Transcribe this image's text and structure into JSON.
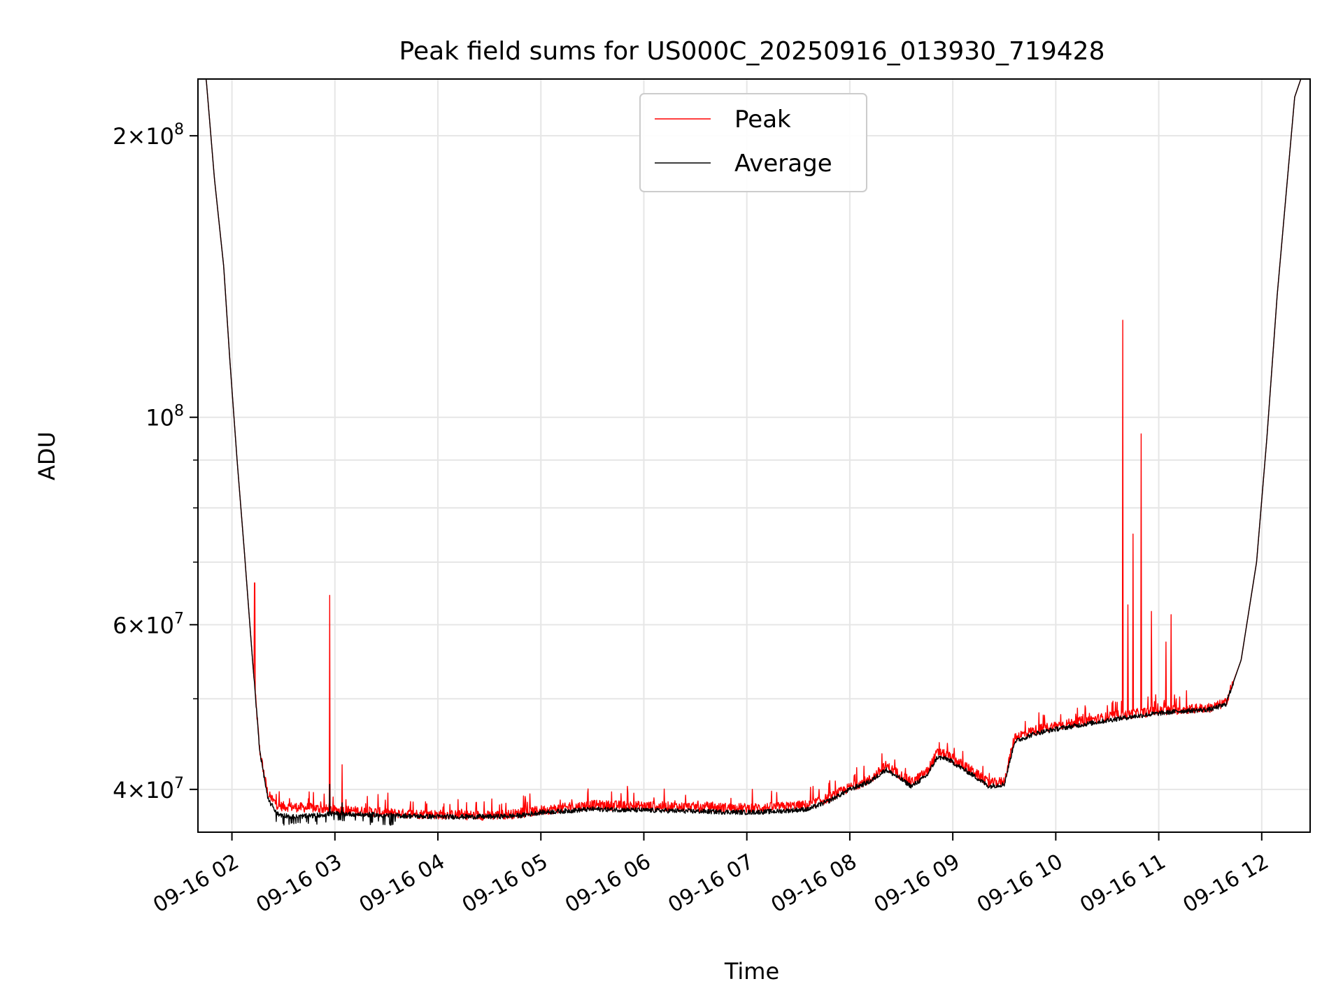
{
  "chart_data": {
    "type": "line",
    "title": "Peak field sums for US000C_20250916_013930_719428",
    "xlabel": "Time",
    "ylabel": "ADU",
    "yscale": "log",
    "ylim": [
      36000000,
      230000000
    ],
    "xlim_hours": [
      1.67,
      12.47
    ],
    "grid": true,
    "legend_position": "upper center",
    "x_ticks": [
      {
        "hour": 2,
        "label": "09-16 02"
      },
      {
        "hour": 3,
        "label": "09-16 03"
      },
      {
        "hour": 4,
        "label": "09-16 04"
      },
      {
        "hour": 5,
        "label": "09-16 05"
      },
      {
        "hour": 6,
        "label": "09-16 06"
      },
      {
        "hour": 7,
        "label": "09-16 07"
      },
      {
        "hour": 8,
        "label": "09-16 08"
      },
      {
        "hour": 9,
        "label": "09-16 09"
      },
      {
        "hour": 10,
        "label": "09-16 10"
      },
      {
        "hour": 11,
        "label": "09-16 11"
      },
      {
        "hour": 12,
        "label": "09-16 12"
      }
    ],
    "y_major_ticks": [
      {
        "value": 40000000,
        "base": "4×10",
        "exp": "7"
      },
      {
        "value": 60000000,
        "base": "6×10",
        "exp": "7"
      },
      {
        "value": 100000000,
        "base": "10",
        "exp": "8"
      },
      {
        "value": 200000000,
        "base": "2×10",
        "exp": "8"
      }
    ],
    "y_minor_ticks": [
      50000000,
      70000000,
      80000000,
      90000000
    ],
    "series": [
      {
        "name": "Peak",
        "color": "#ff0000",
        "base_points": [
          [
            1.67,
            230000000
          ],
          [
            1.75,
            230000000
          ],
          [
            1.83,
            180000000
          ],
          [
            1.92,
            145000000
          ],
          [
            1.98,
            115000000
          ],
          [
            2.05,
            90000000
          ],
          [
            2.12,
            72000000
          ],
          [
            2.2,
            55000000
          ],
          [
            2.27,
            44000000
          ],
          [
            2.35,
            39500000
          ],
          [
            2.45,
            38400000
          ],
          [
            2.6,
            38300000
          ],
          [
            2.8,
            38200000
          ],
          [
            3.0,
            38000000
          ],
          [
            3.3,
            37900000
          ],
          [
            3.6,
            37700000
          ],
          [
            4.0,
            37600000
          ],
          [
            4.5,
            37500000
          ],
          [
            4.8,
            37700000
          ],
          [
            5.0,
            38000000
          ],
          [
            5.2,
            38200000
          ],
          [
            5.5,
            38500000
          ],
          [
            6.0,
            38400000
          ],
          [
            6.5,
            38300000
          ],
          [
            7.0,
            38200000
          ],
          [
            7.3,
            38300000
          ],
          [
            7.6,
            38500000
          ],
          [
            7.8,
            39200000
          ],
          [
            8.0,
            40200000
          ],
          [
            8.2,
            41000000
          ],
          [
            8.35,
            42400000
          ],
          [
            8.5,
            41400000
          ],
          [
            8.6,
            40700000
          ],
          [
            8.75,
            41800000
          ],
          [
            8.85,
            43800000
          ],
          [
            8.95,
            43500000
          ],
          [
            9.05,
            42800000
          ],
          [
            9.2,
            41800000
          ],
          [
            9.35,
            40600000
          ],
          [
            9.5,
            40800000
          ],
          [
            9.6,
            45500000
          ],
          [
            9.8,
            46300000
          ],
          [
            10.0,
            46800000
          ],
          [
            10.3,
            47400000
          ],
          [
            10.6,
            48000000
          ],
          [
            10.9,
            48400000
          ],
          [
            11.2,
            48700000
          ],
          [
            11.5,
            48900000
          ],
          [
            11.65,
            49500000
          ],
          [
            11.8,
            55000000
          ],
          [
            11.95,
            70000000
          ],
          [
            12.05,
            95000000
          ],
          [
            12.15,
            135000000
          ],
          [
            12.25,
            180000000
          ],
          [
            12.32,
            220000000
          ],
          [
            12.38,
            230000000
          ],
          [
            12.47,
            230000000
          ]
        ],
        "spikes": [
          [
            2.22,
            66500000
          ],
          [
            2.95,
            64500000
          ],
          [
            3.07,
            42500000
          ],
          [
            3.42,
            39500000
          ],
          [
            4.05,
            38300000
          ],
          [
            4.45,
            38800000
          ],
          [
            4.6,
            38500000
          ],
          [
            5.3,
            39000000
          ],
          [
            6.3,
            38900000
          ],
          [
            7.7,
            40000000
          ],
          [
            8.05,
            41500000
          ],
          [
            10.65,
            127000000
          ],
          [
            10.7,
            63000000
          ],
          [
            10.75,
            75000000
          ],
          [
            10.83,
            96000000
          ],
          [
            10.93,
            62000000
          ],
          [
            10.97,
            50500000
          ],
          [
            11.07,
            57500000
          ],
          [
            11.12,
            61500000
          ],
          [
            11.17,
            50000000
          ],
          [
            11.27,
            51000000
          ]
        ]
      },
      {
        "name": "Average",
        "color": "#000000",
        "base_points": [
          [
            1.67,
            230000000
          ],
          [
            1.75,
            230000000
          ],
          [
            1.83,
            180000000
          ],
          [
            1.92,
            145000000
          ],
          [
            1.98,
            115000000
          ],
          [
            2.05,
            90000000
          ],
          [
            2.12,
            72000000
          ],
          [
            2.2,
            55000000
          ],
          [
            2.27,
            44000000
          ],
          [
            2.35,
            39000000
          ],
          [
            2.45,
            37600000
          ],
          [
            2.6,
            37400000
          ],
          [
            2.8,
            37500000
          ],
          [
            3.0,
            37700000
          ],
          [
            3.3,
            37600000
          ],
          [
            3.6,
            37500000
          ],
          [
            4.0,
            37400000
          ],
          [
            4.5,
            37400000
          ],
          [
            4.8,
            37500000
          ],
          [
            5.0,
            37800000
          ],
          [
            5.2,
            37900000
          ],
          [
            5.5,
            38100000
          ],
          [
            6.0,
            38000000
          ],
          [
            6.5,
            37900000
          ],
          [
            7.0,
            37800000
          ],
          [
            7.3,
            37900000
          ],
          [
            7.6,
            38100000
          ],
          [
            7.8,
            38900000
          ],
          [
            8.0,
            40000000
          ],
          [
            8.2,
            40800000
          ],
          [
            8.35,
            42000000
          ],
          [
            8.5,
            41000000
          ],
          [
            8.6,
            40300000
          ],
          [
            8.75,
            41400000
          ],
          [
            8.85,
            43300000
          ],
          [
            8.95,
            43100000
          ],
          [
            9.05,
            42400000
          ],
          [
            9.2,
            41400000
          ],
          [
            9.35,
            40300000
          ],
          [
            9.5,
            40500000
          ],
          [
            9.6,
            45000000
          ],
          [
            9.8,
            45900000
          ],
          [
            10.0,
            46400000
          ],
          [
            10.3,
            47000000
          ],
          [
            10.6,
            47600000
          ],
          [
            10.9,
            48100000
          ],
          [
            11.2,
            48500000
          ],
          [
            11.5,
            48700000
          ],
          [
            11.65,
            49300000
          ],
          [
            11.8,
            55000000
          ],
          [
            11.95,
            70000000
          ],
          [
            12.05,
            95000000
          ],
          [
            12.15,
            135000000
          ],
          [
            12.25,
            180000000
          ],
          [
            12.32,
            220000000
          ],
          [
            12.38,
            230000000
          ],
          [
            12.47,
            230000000
          ]
        ],
        "spikes": [
          [
            2.95,
            40500000
          ],
          [
            3.07,
            38700000
          ]
        ]
      }
    ]
  }
}
